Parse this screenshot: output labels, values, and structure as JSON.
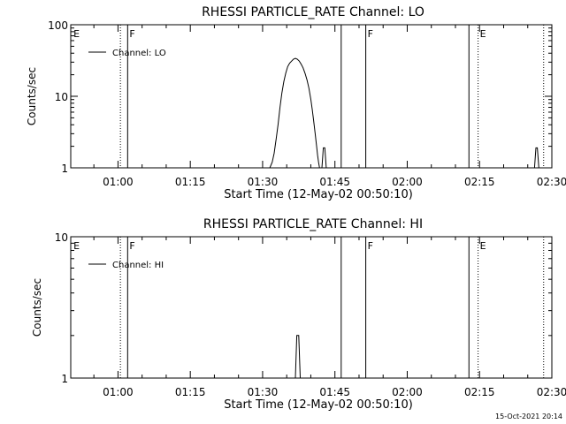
{
  "chart_data": [
    {
      "type": "line",
      "title": "RHESSI PARTICLE_RATE Channel: LO",
      "xlabel": "Start Time (12-May-02 00:50:10)",
      "ylabel": "Counts/sec",
      "x_ticks": [
        "01:00",
        "01:15",
        "01:30",
        "01:45",
        "02:00",
        "02:15",
        "02:30"
      ],
      "x_tick_minutes": [
        60,
        75,
        90,
        105,
        120,
        135,
        150
      ],
      "xlim_minutes": [
        50.2,
        150.0
      ],
      "y_scale": "log",
      "ylim": [
        1,
        100
      ],
      "y_ticks": [
        "1",
        "10",
        "100"
      ],
      "y_tick_values": [
        1,
        10,
        100
      ],
      "legend": {
        "position": "top-left",
        "entries": [
          "Channel: LO"
        ]
      },
      "series": [
        {
          "name": "Channel: LO",
          "x_minutes": [
            91.5,
            92.0,
            92.4,
            92.8,
            93.2,
            93.6,
            94.0,
            94.4,
            94.8,
            95.2,
            95.6,
            96.0,
            96.4,
            96.8,
            97.2,
            97.6,
            98.0,
            98.4,
            98.8,
            99.2,
            99.6,
            100.0,
            100.3,
            100.6,
            100.9,
            101.2,
            101.4,
            101.6,
            101.8,
            102.0,
            102.2,
            102.4
          ],
          "values": [
            1,
            1.2,
            1.6,
            2.5,
            4,
            7,
            11,
            16,
            21,
            26,
            29,
            31,
            33,
            34,
            33,
            31,
            28,
            25,
            21,
            17,
            13,
            9,
            6.5,
            4.5,
            3,
            2,
            1.5,
            1.2,
            1,
            1,
            1,
            1
          ]
        },
        {
          "name": "",
          "x_minutes": [
            102.3,
            102.6,
            102.9,
            103.2
          ],
          "values": [
            1,
            1.9,
            1.9,
            1
          ]
        },
        {
          "name": "",
          "x_minutes": [
            146.4,
            146.7,
            147.0,
            147.3
          ],
          "values": [
            1,
            1.9,
            1.9,
            1
          ]
        }
      ],
      "markers": [
        {
          "label": "E",
          "minute": 50.4,
          "style": "none"
        },
        {
          "label": "",
          "minute": 60.5,
          "style": "dotted"
        },
        {
          "label": "F",
          "minute": 62.0,
          "style": "solid"
        },
        {
          "label": "",
          "minute": 106.3,
          "style": "solid"
        },
        {
          "label": "F",
          "minute": 111.4,
          "style": "solid"
        },
        {
          "label": "",
          "minute": 132.8,
          "style": "solid"
        },
        {
          "label": "E",
          "minute": 134.7,
          "style": "dotted"
        },
        {
          "label": "",
          "minute": 148.3,
          "style": "dotted"
        }
      ]
    },
    {
      "type": "line",
      "title": "RHESSI PARTICLE_RATE Channel: HI",
      "xlabel": "Start Time (12-May-02 00:50:10)",
      "ylabel": "Counts/sec",
      "x_ticks": [
        "01:00",
        "01:15",
        "01:30",
        "01:45",
        "02:00",
        "02:15",
        "02:30"
      ],
      "x_tick_minutes": [
        60,
        75,
        90,
        105,
        120,
        135,
        150
      ],
      "xlim_minutes": [
        50.2,
        150.0
      ],
      "y_scale": "log",
      "ylim": [
        1,
        10
      ],
      "y_ticks": [
        "1",
        "10"
      ],
      "y_tick_values": [
        1,
        10
      ],
      "legend": {
        "position": "top-left",
        "entries": [
          "Channel: HI"
        ]
      },
      "series": [
        {
          "name": "Channel: HI",
          "x_minutes": [
            96.8,
            97.1,
            97.5,
            97.8
          ],
          "values": [
            1,
            2,
            2,
            1
          ]
        }
      ],
      "markers": [
        {
          "label": "E",
          "minute": 50.4,
          "style": "none"
        },
        {
          "label": "",
          "minute": 60.5,
          "style": "dotted"
        },
        {
          "label": "F",
          "minute": 62.0,
          "style": "solid"
        },
        {
          "label": "",
          "minute": 106.3,
          "style": "solid"
        },
        {
          "label": "F",
          "minute": 111.4,
          "style": "solid"
        },
        {
          "label": "",
          "minute": 132.8,
          "style": "solid"
        },
        {
          "label": "E",
          "minute": 134.7,
          "style": "dotted"
        },
        {
          "label": "",
          "minute": 148.3,
          "style": "dotted"
        }
      ]
    }
  ],
  "footer": {
    "timestamp": "15-Oct-2021 20:14"
  },
  "colors": {
    "background": "#ffffff",
    "ink": "#000000"
  }
}
